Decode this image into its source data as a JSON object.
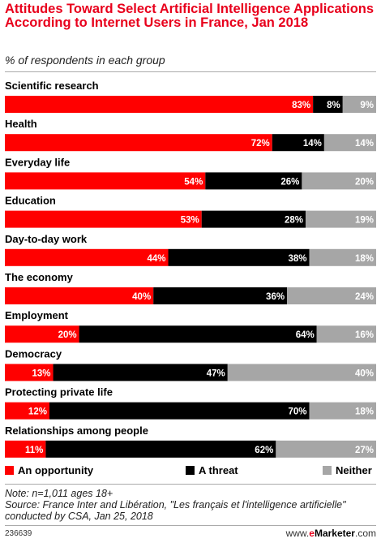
{
  "title": "Attitudes Toward Select Artificial Intelligence Applications According to Internet Users in France, Jan 2018",
  "subtitle": "% of respondents in each group",
  "chart_data": {
    "type": "bar",
    "orientation": "horizontal",
    "stacked": true,
    "categories": [
      "Scientific research",
      "Health",
      "Everyday life",
      "Education",
      "Day-to-day work",
      "The economy",
      "Employment",
      "Democracy",
      "Protecting private life",
      "Relationships among people"
    ],
    "series": [
      {
        "name": "An opportunity",
        "color": "#ff0000",
        "values": [
          83,
          72,
          54,
          53,
          44,
          40,
          20,
          13,
          12,
          11
        ]
      },
      {
        "name": "A threat",
        "color": "#000000",
        "values": [
          8,
          14,
          26,
          28,
          38,
          36,
          64,
          47,
          70,
          62
        ]
      },
      {
        "name": "Neither",
        "color": "#a6a6a6",
        "values": [
          9,
          14,
          20,
          19,
          18,
          24,
          16,
          40,
          18,
          27
        ]
      }
    ],
    "value_suffix": "%",
    "xlim": [
      0,
      100
    ],
    "legend_position": "bottom"
  },
  "legend": {
    "opportunity": "An opportunity",
    "threat": "A threat",
    "neither": "Neither"
  },
  "note_line1": "Note: n=1,011 ages 18+",
  "note_line2": "Source: France Inter and Libération, \"Les français et l'intelligence artificielle\" conducted by CSA, Jan 25, 2018",
  "footer_id": "236639",
  "brand": {
    "prefix": "www.",
    "e": "e",
    "name": "Marketer",
    "suffix": ".com"
  }
}
